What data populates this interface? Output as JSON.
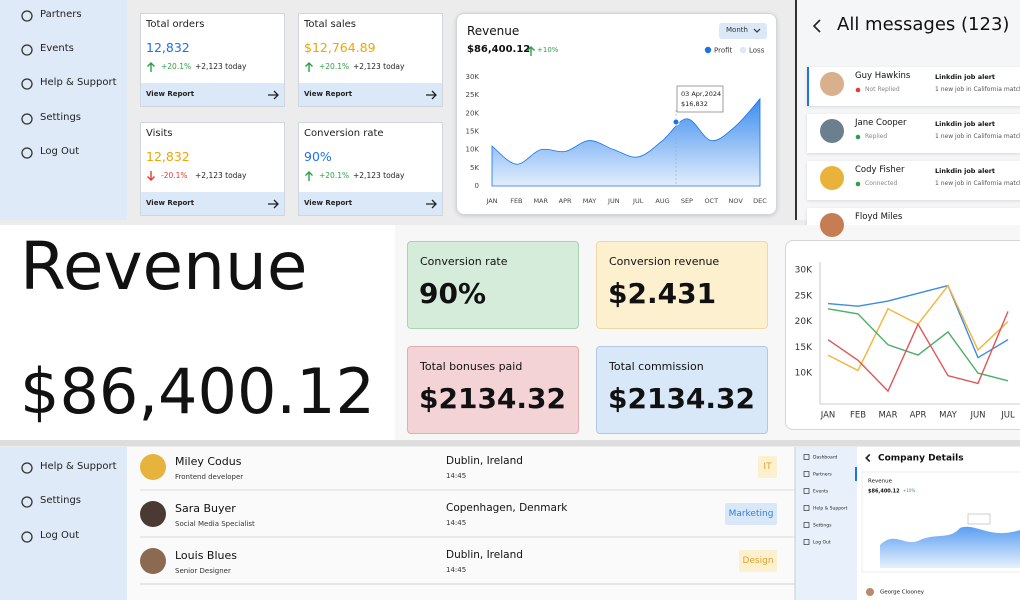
{
  "sidebar_top": {
    "items": [
      "Partners",
      "Events",
      "Help & Support",
      "Settings",
      "Log Out"
    ]
  },
  "stat_cards": [
    {
      "title": "Total orders",
      "value": "12,832",
      "change": "+20.1%",
      "today": "+2,123 today",
      "link": "View Report"
    },
    {
      "title": "Total sales",
      "value": "$12,764.89",
      "change": "+20.1%",
      "today": "+2,123 today",
      "link": "View Report"
    },
    {
      "title": "Visits",
      "value": "12,832",
      "change": "-20.1%",
      "today": "+2,123 today",
      "link": "View Report"
    },
    {
      "title": "Conversion rate",
      "value": "90%",
      "change": "+20.1%",
      "today": "+2,123 today",
      "link": "View Report"
    }
  ],
  "revenue_card": {
    "title": "Revenue",
    "period": "Month",
    "total": "$86,400.12",
    "change": "+10%",
    "tooltip_date": "03 Apr,2024",
    "tooltip_value": "$16,832",
    "chart": {
      "type": "area",
      "legend": [
        {
          "name": "Profit",
          "color": "#1a73e8"
        },
        {
          "name": "Loss",
          "color": "#dbe8f8"
        }
      ],
      "categories": [
        "JAN",
        "FEB",
        "MAR",
        "APR",
        "MAY",
        "JUN",
        "JUL",
        "AUG",
        "SEP",
        "OCT",
        "NOV",
        "DEC"
      ],
      "values": [
        11000,
        6000,
        10000,
        9500,
        12500,
        10000,
        8000,
        12500,
        18500,
        12500,
        16500,
        24000
      ],
      "ylim": [
        0,
        30000
      ],
      "yticks": [
        0,
        {
          "value": 5000,
          "label": "5K"
        },
        {
          "value": 10000,
          "label": "10K"
        },
        {
          "value": 15000,
          "label": "15K"
        },
        {
          "value": 20000,
          "label": "20K"
        },
        {
          "value": 25000,
          "label": "25K"
        },
        {
          "value": 30000,
          "label": "30K"
        }
      ]
    }
  },
  "messages": {
    "title": "All messages (123)",
    "items": [
      {
        "name": "Guy Hawkins",
        "status": "Not Replied",
        "subject": "Linkdin job alert",
        "preview": "1 new job in California match"
      },
      {
        "name": "Jane Cooper",
        "status": "Replied",
        "subject": "Linkdin job alert",
        "preview": "1 new job in California match"
      },
      {
        "name": "Cody Fisher",
        "status": "Connected",
        "subject": "Linkdin job alert",
        "preview": "1 new job in California match"
      },
      {
        "name": "Floyd Miles"
      }
    ]
  },
  "big_revenue": {
    "title": "Revenue",
    "value": "$86,400.12"
  },
  "kpi_cards": [
    {
      "title": "Conversion rate",
      "value": "90%"
    },
    {
      "title": "Conversion revenue",
      "value": "$2.431"
    },
    {
      "title": "Total bonuses paid",
      "value": "$2134.32"
    },
    {
      "title": "Total commission",
      "value": "$2134.32"
    }
  ],
  "line_chart": {
    "type": "line",
    "categories": [
      "JAN",
      "FEB",
      "MAR",
      "APR",
      "MAY",
      "JUN",
      "JUL"
    ],
    "ylim": [
      4000,
      31000
    ],
    "yticks": [
      {
        "value": 10000,
        "label": "10K"
      },
      {
        "value": 15000,
        "label": "15K"
      },
      {
        "value": 20000,
        "label": "20K"
      },
      {
        "value": 25000,
        "label": "25K"
      },
      {
        "value": 30000,
        "label": "30K"
      }
    ],
    "series": [
      {
        "color": "#3b8be8",
        "values": [
          23500,
          23000,
          24000,
          25500,
          27000,
          13000,
          16500
        ]
      },
      {
        "color": "#f2b53a",
        "values": [
          13500,
          10500,
          22500,
          19500,
          27000,
          14500,
          20000
        ]
      },
      {
        "color": "#4caf6a",
        "values": [
          22500,
          21500,
          15500,
          13500,
          18000,
          10000,
          8500
        ]
      },
      {
        "color": "#e0555a",
        "values": [
          16500,
          12500,
          6500,
          19500,
          9500,
          8000,
          22000
        ]
      }
    ]
  },
  "sidebar_bottom": {
    "items": [
      "Help & Support",
      "Settings",
      "Log Out"
    ]
  },
  "team_table": {
    "rows": [
      {
        "name": "Miley Codus",
        "role": "Frontend developer",
        "location": "Dublin, Ireland",
        "time": "14:45",
        "department": "IT"
      },
      {
        "name": "Sara Buyer",
        "role": "Social Media Specialist",
        "location": "Copenhagen, Denmark",
        "time": "14:45",
        "department": "Marketing"
      },
      {
        "name": "Louis Blues",
        "role": "Senior Designer",
        "location": "Dublin, Ireland",
        "time": "14:45",
        "department": "Design"
      }
    ]
  },
  "mini_app": {
    "sidebar": [
      "Dashboard",
      "Partners",
      "Events",
      "Help & Support",
      "Settings",
      "Log Out"
    ],
    "title": "Company Details",
    "revenue_label": "Revenue",
    "total": "$86,400.12",
    "change": "+10%",
    "contact": "George Clooney"
  }
}
